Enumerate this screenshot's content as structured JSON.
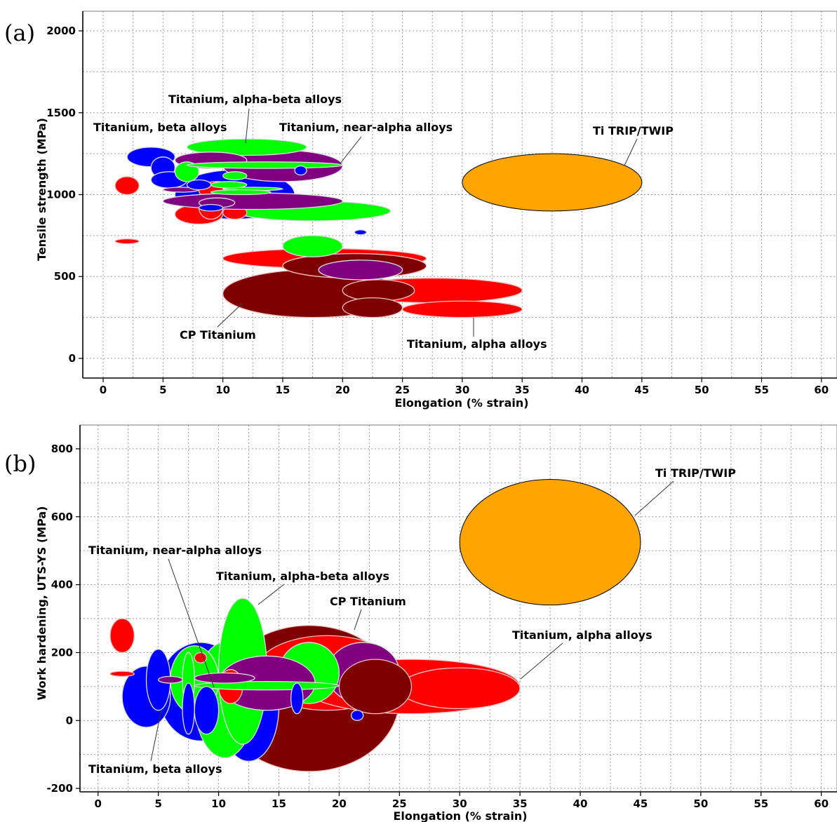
{
  "colors": {
    "red": "#ff0000",
    "darkred": "#7f0000",
    "blue": "#0000ff",
    "green": "#00ff00",
    "purple": "#800080",
    "orange": "#ffa500"
  },
  "chart_data": [
    {
      "type": "scatter",
      "panel_label": "(a)",
      "xlabel": "Elongation (% strain)",
      "ylabel": "Tensile strength (MPa)",
      "xlim": [
        -1.7,
        61.3
      ],
      "ylim": [
        -120,
        2120
      ],
      "xticks": [
        0,
        5,
        10,
        15,
        20,
        25,
        30,
        35,
        40,
        45,
        50,
        55,
        60
      ],
      "yticks": [
        0,
        500,
        1000,
        1500,
        2000
      ],
      "grid": true,
      "bubbles": [
        {
          "group": "CP Titanium",
          "color": "darkred",
          "x": [
            10,
            25
          ],
          "y": [
            250,
            540
          ]
        },
        {
          "group": "Titanium, alpha alloys",
          "color": "red",
          "x": [
            10,
            27
          ],
          "y": [
            550,
            670
          ]
        },
        {
          "group": "CP Titanium",
          "color": "darkred",
          "x": [
            15,
            27
          ],
          "y": [
            490,
            640
          ]
        },
        {
          "group": "Titanium, alpha alloys",
          "color": "red",
          "x": [
            20,
            35
          ],
          "y": [
            340,
            490
          ]
        },
        {
          "group": "Titanium, near-alpha alloys",
          "color": "purple",
          "x": [
            18,
            25
          ],
          "y": [
            480,
            600
          ]
        },
        {
          "group": "Titanium, alpha-beta alloys",
          "color": "green",
          "x": [
            15,
            20
          ],
          "y": [
            620,
            750
          ]
        },
        {
          "group": "CP Titanium",
          "color": "darkred",
          "x": [
            20,
            26
          ],
          "y": [
            350,
            480
          ]
        },
        {
          "group": "Titanium, alpha alloys",
          "color": "red",
          "x": [
            25,
            35
          ],
          "y": [
            250,
            350
          ]
        },
        {
          "group": "CP Titanium",
          "color": "darkred",
          "x": [
            20,
            25
          ],
          "y": [
            250,
            370
          ]
        },
        {
          "group": "Titanium, alpha alloys",
          "color": "red",
          "x": [
            1,
            3
          ],
          "y": [
            700,
            730
          ]
        },
        {
          "group": "Titanium, beta alloys",
          "color": "blue",
          "x": [
            21,
            22
          ],
          "y": [
            755,
            785
          ]
        },
        {
          "group": "Titanium, beta alloys",
          "color": "blue",
          "x": [
            6,
            16
          ],
          "y": [
            850,
            1150
          ]
        },
        {
          "group": "Titanium, alpha-beta alloys",
          "color": "green",
          "x": [
            11,
            24
          ],
          "y": [
            840,
            960
          ]
        },
        {
          "group": "Titanium, near-alpha alloys",
          "color": "purple",
          "x": [
            10,
            20
          ],
          "y": [
            1080,
            1270
          ]
        },
        {
          "group": "Titanium, alpha-beta alloys",
          "color": "green",
          "x": [
            7,
            17
          ],
          "y": [
            1240,
            1340
          ]
        },
        {
          "group": "Titanium, beta alloys",
          "color": "blue",
          "x": [
            2,
            6
          ],
          "y": [
            1170,
            1290
          ]
        },
        {
          "group": "Titanium, beta alloys",
          "color": "blue",
          "x": [
            4,
            6
          ],
          "y": [
            1100,
            1230
          ]
        },
        {
          "group": "Titanium, near-alpha alloys",
          "color": "purple",
          "x": [
            6,
            12
          ],
          "y": [
            1160,
            1260
          ]
        },
        {
          "group": "Titanium, alpha alloys",
          "color": "red",
          "x": [
            1,
            3
          ],
          "y": [
            1000,
            1110
          ]
        },
        {
          "group": "Titanium, beta alloys",
          "color": "blue",
          "x": [
            4,
            7
          ],
          "y": [
            1040,
            1140
          ]
        },
        {
          "group": "Titanium, alpha-beta alloys",
          "color": "green",
          "x": [
            6,
            8
          ],
          "y": [
            1080,
            1200
          ]
        },
        {
          "group": "Titanium, alpha-beta alloys",
          "color": "green",
          "x": [
            7,
            20
          ],
          "y": [
            1160,
            1200
          ]
        },
        {
          "group": "Titanium, beta alloys",
          "color": "blue",
          "x": [
            16,
            17
          ],
          "y": [
            1120,
            1175
          ]
        },
        {
          "group": "Titanium, alpha alloys",
          "color": "red",
          "x": [
            6,
            10
          ],
          "y": [
            820,
            940
          ]
        },
        {
          "group": "Titanium, alpha alloys",
          "color": "red",
          "x": [
            8,
            10
          ],
          "y": [
            850,
            990
          ]
        },
        {
          "group": "Titanium, alpha alloys",
          "color": "red",
          "x": [
            8,
            11
          ],
          "y": [
            970,
            1080
          ]
        },
        {
          "group": "Titanium, alpha alloys",
          "color": "red",
          "x": [
            10,
            12
          ],
          "y": [
            850,
            930
          ]
        },
        {
          "group": "Titanium, alpha alloys",
          "color": "red",
          "x": [
            10,
            12
          ],
          "y": [
            920,
            1010
          ]
        },
        {
          "group": "Titanium, near-alpha alloys",
          "color": "purple",
          "x": [
            5,
            20
          ],
          "y": [
            910,
            1010
          ]
        },
        {
          "group": "Titanium, near-alpha alloys",
          "color": "purple",
          "x": [
            8,
            11
          ],
          "y": [
            920,
            980
          ]
        },
        {
          "group": "Titanium, beta alloys",
          "color": "blue",
          "x": [
            8,
            10
          ],
          "y": [
            900,
            940
          ]
        },
        {
          "group": "Titanium, alpha-beta alloys",
          "color": "green",
          "x": [
            10,
            12
          ],
          "y": [
            1090,
            1140
          ]
        },
        {
          "group": "Titanium, near-alpha alloys",
          "color": "purple",
          "x": [
            5,
            8
          ],
          "y": [
            1015,
            1045
          ]
        },
        {
          "group": "Titanium, alpha-beta alloys",
          "color": "green",
          "x": [
            10,
            15
          ],
          "y": [
            1025,
            1045
          ]
        },
        {
          "group": "Titanium, alpha-beta alloys",
          "color": "green",
          "x": [
            9,
            14
          ],
          "y": [
            1000,
            1030
          ]
        },
        {
          "group": "Titanium, alpha-beta alloys",
          "color": "green",
          "x": [
            9,
            12
          ],
          "y": [
            1040,
            1080
          ]
        },
        {
          "group": "Titanium, beta alloys",
          "color": "blue",
          "x": [
            7,
            9
          ],
          "y": [
            1030,
            1090
          ]
        },
        {
          "group": "Ti TRIP/TWIP",
          "color": "orange",
          "x": [
            30,
            45
          ],
          "y": [
            900,
            1250
          ]
        }
      ],
      "annotations": [
        {
          "text": "Titanium, alpha-beta alloys",
          "x": 11,
          "y": 1285
        },
        {
          "text": "Titanium, beta alloys",
          "x": 5,
          "y": 1230
        },
        {
          "text": "Titanium, near-alpha alloys",
          "x": 20,
          "y": 1180
        },
        {
          "text": "Ti TRIP/TWIP",
          "x": 43,
          "y": 1170
        },
        {
          "text": "CP Titanium",
          "x": 12,
          "y": 330
        },
        {
          "text": "Titanium, alpha alloys",
          "x": 31,
          "y": 240
        }
      ]
    },
    {
      "type": "scatter",
      "panel_label": "(b)",
      "xlabel": "Elongation (% strain)",
      "ylabel": "Work hardening, UTS-YS (MPa)",
      "xlim": [
        -1.5,
        61.3
      ],
      "ylim": [
        -210,
        870
      ],
      "xticks": [
        0,
        5,
        10,
        15,
        20,
        25,
        30,
        35,
        40,
        45,
        50,
        55,
        60
      ],
      "yticks": [
        -200,
        0,
        200,
        400,
        600,
        800
      ],
      "grid": true,
      "bubbles": [
        {
          "group": "CP Titanium",
          "color": "darkred",
          "x": [
            10,
            25
          ],
          "y": [
            -150,
            280
          ]
        },
        {
          "group": "Titanium, alpha alloys",
          "color": "red",
          "x": [
            13,
            25
          ],
          "y": [
            30,
            250
          ]
        },
        {
          "group": "Titanium, alpha alloys",
          "color": "red",
          "x": [
            17,
            35
          ],
          "y": [
            20,
            180
          ]
        },
        {
          "group": "Titanium, near-alpha alloys",
          "color": "purple",
          "x": [
            19,
            25
          ],
          "y": [
            50,
            230
          ]
        },
        {
          "group": "Titanium, alpha alloys",
          "color": "red",
          "x": [
            25,
            35
          ],
          "y": [
            35,
            155
          ]
        },
        {
          "group": "CP Titanium",
          "color": "darkred",
          "x": [
            20,
            26
          ],
          "y": [
            20,
            180
          ]
        },
        {
          "group": "Titanium, beta alloys",
          "color": "blue",
          "x": [
            5,
            12
          ],
          "y": [
            -60,
            230
          ]
        },
        {
          "group": "Titanium, beta alloys",
          "color": "blue",
          "x": [
            10,
            15
          ],
          "y": [
            -120,
            200
          ]
        },
        {
          "group": "Titanium, beta alloys",
          "color": "blue",
          "x": [
            2,
            6
          ],
          "y": [
            -20,
            160
          ]
        },
        {
          "group": "Titanium, beta alloys",
          "color": "blue",
          "x": [
            4,
            6
          ],
          "y": [
            30,
            210
          ]
        },
        {
          "group": "Titanium, alpha alloys",
          "color": "red",
          "x": [
            1,
            3
          ],
          "y": [
            200,
            300
          ]
        },
        {
          "group": "Titanium, alpha alloys",
          "color": "red",
          "x": [
            1,
            3
          ],
          "y": [
            130,
            145
          ]
        },
        {
          "group": "Titanium, alpha-beta alloys",
          "color": "green",
          "x": [
            8,
            13
          ],
          "y": [
            -110,
            230
          ]
        },
        {
          "group": "Titanium, alpha-beta alloys",
          "color": "green",
          "x": [
            10,
            14
          ],
          "y": [
            -70,
            360
          ]
        },
        {
          "group": "Titanium, alpha-beta alloys",
          "color": "green",
          "x": [
            6,
            10
          ],
          "y": [
            20,
            220
          ]
        },
        {
          "group": "Titanium, alpha-beta alloys",
          "color": "green",
          "x": [
            7,
            8
          ],
          "y": [
            40,
            200
          ]
        },
        {
          "group": "Titanium, alpha-beta alloys",
          "color": "green",
          "x": [
            15,
            20
          ],
          "y": [
            50,
            230
          ]
        },
        {
          "group": "Titanium, near-alpha alloys",
          "color": "purple",
          "x": [
            10,
            18
          ],
          "y": [
            30,
            190
          ]
        },
        {
          "group": "Titanium, alpha alloys",
          "color": "red",
          "x": [
            10,
            12
          ],
          "y": [
            50,
            150
          ]
        },
        {
          "group": "Titanium, alpha alloys",
          "color": "red",
          "x": [
            8,
            9
          ],
          "y": [
            170,
            200
          ]
        },
        {
          "group": "Titanium, alpha-beta alloys",
          "color": "green",
          "x": [
            8,
            20
          ],
          "y": [
            90,
            115
          ]
        },
        {
          "group": "Titanium, near-alpha alloys",
          "color": "purple",
          "x": [
            8,
            13
          ],
          "y": [
            110,
            140
          ]
        },
        {
          "group": "Titanium, near-alpha alloys",
          "color": "purple",
          "x": [
            5,
            7
          ],
          "y": [
            110,
            130
          ]
        },
        {
          "group": "Titanium, beta alloys",
          "color": "blue",
          "x": [
            7,
            8
          ],
          "y": [
            -40,
            110
          ]
        },
        {
          "group": "Titanium, beta alloys",
          "color": "blue",
          "x": [
            8,
            10
          ],
          "y": [
            -40,
            100
          ]
        },
        {
          "group": "Titanium, beta alloys",
          "color": "blue",
          "x": [
            16,
            17
          ],
          "y": [
            20,
            110
          ]
        },
        {
          "group": "Titanium, beta alloys",
          "color": "blue",
          "x": [
            21,
            22
          ],
          "y": [
            0,
            30
          ]
        },
        {
          "group": "Ti TRIP/TWIP",
          "color": "orange",
          "x": [
            30,
            45
          ],
          "y": [
            340,
            710
          ]
        }
      ],
      "annotations": [
        {
          "text": "Ti TRIP/TWIP",
          "x": 45,
          "y": 660
        },
        {
          "text": "Titanium, near-alpha alloys",
          "x": 7,
          "y": 520
        },
        {
          "text": "Titanium, alpha-beta alloys",
          "x": 17,
          "y": 400
        },
        {
          "text": "CP Titanium",
          "x": 22,
          "y": 340
        },
        {
          "text": "Titanium, alpha alloys",
          "x": 40,
          "y": 240
        },
        {
          "text": "Titanium, beta alloys",
          "x": 5,
          "y": -140
        }
      ]
    }
  ]
}
